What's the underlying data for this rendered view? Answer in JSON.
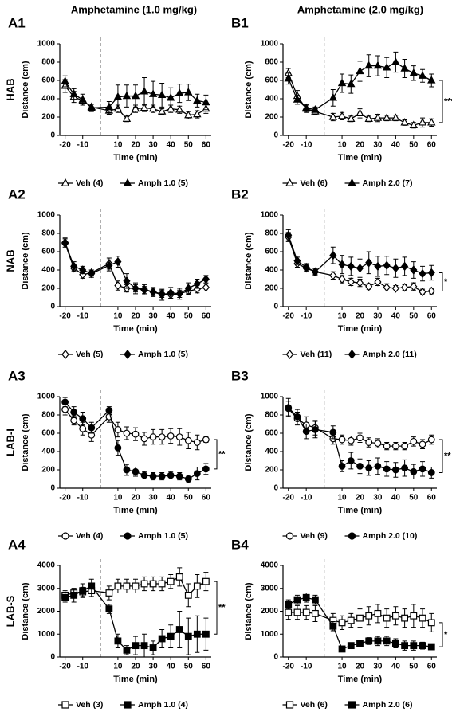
{
  "headers": [
    "Amphetamine (1.0 mg/kg)",
    "Amphetamine (2.0 mg/kg)"
  ],
  "chart_data": [
    {
      "type": "line",
      "panel": "A1",
      "row_label": "HAB",
      "xlabel": "Time (min)",
      "ylabel": "Distance (cm)",
      "x": [
        -20,
        -15,
        -10,
        -5,
        5,
        10,
        15,
        20,
        25,
        30,
        35,
        40,
        45,
        50,
        55,
        60
      ],
      "xlim": [
        -23,
        63
      ],
      "xticks": [
        -20,
        -10,
        10,
        20,
        30,
        40,
        50,
        60
      ],
      "ylim": [
        0,
        1000
      ],
      "yticks": [
        0,
        200,
        400,
        600,
        800,
        1000
      ],
      "series": [
        {
          "name": "Veh (4)",
          "marker": "triangle",
          "filled": false,
          "color": "#000000",
          "values": [
            540,
            420,
            380,
            310,
            270,
            290,
            180,
            290,
            300,
            290,
            260,
            290,
            280,
            220,
            230,
            290
          ],
          "errors": [
            70,
            60,
            50,
            30,
            40,
            40,
            30,
            40,
            40,
            40,
            30,
            40,
            40,
            40,
            40,
            50
          ]
        },
        {
          "name": "Amph 1.0 (5)",
          "marker": "triangle",
          "filled": true,
          "color": "#000000",
          "values": [
            590,
            450,
            390,
            300,
            310,
            420,
            430,
            430,
            480,
            450,
            440,
            410,
            460,
            470,
            380,
            360
          ],
          "errors": [
            60,
            60,
            60,
            40,
            60,
            130,
            120,
            120,
            150,
            140,
            130,
            110,
            100,
            90,
            70,
            80
          ]
        }
      ]
    },
    {
      "type": "line",
      "panel": "B1",
      "xlabel": "Time (min)",
      "ylabel": "Distance (cm)",
      "annotation": "***",
      "x": [
        -20,
        -15,
        -10,
        -5,
        5,
        10,
        15,
        20,
        25,
        30,
        35,
        40,
        45,
        50,
        55,
        60
      ],
      "xlim": [
        -23,
        63
      ],
      "xticks": [
        -20,
        -10,
        10,
        20,
        30,
        40,
        50,
        60
      ],
      "ylim": [
        0,
        1000
      ],
      "yticks": [
        0,
        200,
        400,
        600,
        800,
        1000
      ],
      "series": [
        {
          "name": "Veh (6)",
          "marker": "triangle",
          "filled": false,
          "color": "#000000",
          "values": [
            680,
            430,
            290,
            260,
            200,
            210,
            180,
            240,
            180,
            190,
            190,
            190,
            140,
            110,
            140,
            140
          ],
          "errors": [
            50,
            60,
            40,
            30,
            40,
            40,
            30,
            50,
            30,
            40,
            30,
            30,
            30,
            30,
            50,
            40
          ]
        },
        {
          "name": "Amph 2.0 (7)",
          "marker": "triangle",
          "filled": true,
          "color": "#000000",
          "values": [
            620,
            390,
            300,
            280,
            410,
            570,
            560,
            700,
            760,
            760,
            740,
            800,
            730,
            680,
            650,
            600
          ],
          "errors": [
            60,
            50,
            40,
            30,
            90,
            100,
            100,
            110,
            120,
            110,
            110,
            110,
            100,
            80,
            70,
            70
          ]
        }
      ]
    },
    {
      "type": "line",
      "panel": "A2",
      "row_label": "NAB",
      "xlabel": "Time (min)",
      "ylabel": "Distance (cm)",
      "x": [
        -20,
        -15,
        -10,
        -5,
        5,
        10,
        15,
        20,
        25,
        30,
        35,
        40,
        45,
        50,
        55,
        60
      ],
      "xlim": [
        -23,
        63
      ],
      "xticks": [
        -20,
        -10,
        10,
        20,
        30,
        40,
        50,
        60
      ],
      "ylim": [
        0,
        1000
      ],
      "yticks": [
        0,
        200,
        400,
        600,
        800,
        1000
      ],
      "series": [
        {
          "name": "Veh (5)",
          "marker": "diamond",
          "filled": false,
          "color": "#000000",
          "values": [
            690,
            420,
            350,
            370,
            470,
            230,
            200,
            200,
            180,
            160,
            140,
            130,
            140,
            170,
            190,
            210
          ],
          "errors": [
            50,
            40,
            40,
            30,
            60,
            50,
            40,
            40,
            40,
            40,
            40,
            40,
            40,
            40,
            40,
            40
          ]
        },
        {
          "name": "Amph 1.0 (5)",
          "marker": "diamond",
          "filled": true,
          "color": "#000000",
          "values": [
            700,
            440,
            400,
            360,
            450,
            490,
            280,
            200,
            190,
            160,
            130,
            150,
            140,
            200,
            250,
            300
          ],
          "errors": [
            50,
            50,
            40,
            40,
            60,
            60,
            80,
            60,
            50,
            50,
            60,
            60,
            60,
            60,
            50,
            40
          ]
        }
      ]
    },
    {
      "type": "line",
      "panel": "B2",
      "xlabel": "Time (min)",
      "ylabel": "Distance (cm)",
      "annotation": "*",
      "x": [
        -20,
        -15,
        -10,
        -5,
        5,
        10,
        15,
        20,
        25,
        30,
        35,
        40,
        45,
        50,
        55,
        60
      ],
      "xlim": [
        -23,
        63
      ],
      "xticks": [
        -20,
        -10,
        10,
        20,
        30,
        40,
        50,
        60
      ],
      "ylim": [
        0,
        1000
      ],
      "yticks": [
        0,
        200,
        400,
        600,
        800,
        1000
      ],
      "series": [
        {
          "name": "Veh (11)",
          "marker": "diamond",
          "filled": false,
          "color": "#000000",
          "values": [
            760,
            470,
            420,
            380,
            340,
            300,
            270,
            260,
            220,
            270,
            210,
            200,
            210,
            220,
            160,
            170
          ],
          "errors": [
            50,
            40,
            40,
            30,
            40,
            40,
            40,
            40,
            30,
            40,
            40,
            30,
            30,
            40,
            30,
            30
          ]
        },
        {
          "name": "Amph 2.0 (11)",
          "marker": "diamond",
          "filled": true,
          "color": "#000000",
          "values": [
            780,
            500,
            430,
            380,
            560,
            460,
            440,
            420,
            480,
            440,
            450,
            420,
            440,
            400,
            360,
            370
          ],
          "errors": [
            60,
            40,
            40,
            40,
            90,
            100,
            100,
            100,
            120,
            110,
            100,
            100,
            100,
            90,
            80,
            80
          ]
        }
      ]
    },
    {
      "type": "line",
      "panel": "A3",
      "row_label": "LAB-I",
      "xlabel": "Time (min)",
      "ylabel": "Distance (cm)",
      "annotation": "**",
      "x": [
        -20,
        -15,
        -10,
        -5,
        5,
        10,
        15,
        20,
        25,
        30,
        35,
        40,
        45,
        50,
        55,
        60
      ],
      "xlim": [
        -23,
        63
      ],
      "xticks": [
        -20,
        -10,
        10,
        20,
        30,
        40,
        50,
        60
      ],
      "ylim": [
        0,
        1000
      ],
      "yticks": [
        0,
        200,
        400,
        600,
        800,
        1000
      ],
      "series": [
        {
          "name": "Veh (4)",
          "marker": "circle",
          "filled": false,
          "color": "#000000",
          "values": [
            860,
            740,
            650,
            580,
            780,
            640,
            600,
            590,
            540,
            560,
            560,
            570,
            560,
            520,
            500,
            530
          ],
          "errors": [
            60,
            50,
            70,
            70,
            60,
            80,
            70,
            70,
            70,
            80,
            80,
            80,
            90,
            90,
            80,
            30
          ]
        },
        {
          "name": "Amph 1.0 (5)",
          "marker": "circle",
          "filled": true,
          "color": "#000000",
          "values": [
            940,
            830,
            760,
            660,
            850,
            440,
            200,
            180,
            140,
            130,
            130,
            140,
            130,
            100,
            160,
            210
          ],
          "errors": [
            50,
            60,
            70,
            60,
            40,
            80,
            60,
            50,
            40,
            40,
            40,
            40,
            40,
            40,
            70,
            60
          ]
        }
      ]
    },
    {
      "type": "line",
      "panel": "B3",
      "xlabel": "Time (min)",
      "ylabel": "Distance (cm)",
      "annotation": "**",
      "x": [
        -20,
        -15,
        -10,
        -5,
        5,
        10,
        15,
        20,
        25,
        30,
        35,
        40,
        45,
        50,
        55,
        60
      ],
      "xlim": [
        -23,
        63
      ],
      "xticks": [
        -20,
        -10,
        10,
        20,
        30,
        40,
        50,
        60
      ],
      "ylim": [
        0,
        1000
      ],
      "yticks": [
        0,
        200,
        400,
        600,
        800,
        1000
      ],
      "series": [
        {
          "name": "Veh (9)",
          "marker": "circle",
          "filled": false,
          "color": "#000000",
          "values": [
            870,
            760,
            690,
            660,
            540,
            530,
            520,
            550,
            500,
            490,
            460,
            460,
            460,
            510,
            480,
            530
          ],
          "errors": [
            80,
            70,
            90,
            80,
            60,
            50,
            50,
            50,
            50,
            50,
            40,
            40,
            40,
            50,
            50,
            50
          ]
        },
        {
          "name": "Amph 2.0 (10)",
          "marker": "circle",
          "filled": true,
          "color": "#000000",
          "values": [
            880,
            780,
            620,
            640,
            610,
            240,
            300,
            240,
            220,
            240,
            210,
            200,
            220,
            180,
            210,
            170
          ],
          "errors": [
            100,
            80,
            80,
            90,
            70,
            60,
            90,
            80,
            80,
            90,
            80,
            80,
            90,
            80,
            80,
            60
          ]
        }
      ]
    },
    {
      "type": "line",
      "panel": "A4",
      "row_label": "LAB-S",
      "xlabel": "Time (min)",
      "ylabel": "Distance (cm)",
      "annotation": "**",
      "x": [
        -20,
        -15,
        -10,
        -5,
        5,
        10,
        15,
        20,
        25,
        30,
        35,
        40,
        45,
        50,
        55,
        60
      ],
      "xlim": [
        -23,
        63
      ],
      "xticks": [
        -20,
        -10,
        10,
        20,
        30,
        40,
        50,
        60
      ],
      "ylim": [
        0,
        4000
      ],
      "yticks": [
        0,
        1000,
        2000,
        3000,
        4000
      ],
      "series": [
        {
          "name": "Veh (3)",
          "marker": "square",
          "filled": false,
          "color": "#000000",
          "values": [
            2700,
            2800,
            2850,
            2900,
            2800,
            3100,
            3100,
            3100,
            3200,
            3200,
            3200,
            3300,
            3500,
            2700,
            3100,
            3300
          ],
          "errors": [
            200,
            200,
            200,
            250,
            300,
            300,
            300,
            300,
            300,
            300,
            300,
            300,
            400,
            500,
            500,
            400
          ]
        },
        {
          "name": "Amph 1.0 (4)",
          "marker": "square",
          "filled": true,
          "color": "#000000",
          "values": [
            2600,
            2700,
            2900,
            3100,
            2100,
            700,
            300,
            500,
            500,
            400,
            800,
            900,
            1200,
            900,
            1000,
            1000
          ],
          "errors": [
            200,
            300,
            300,
            300,
            200,
            300,
            200,
            400,
            500,
            300,
            400,
            500,
            800,
            800,
            800,
            700
          ]
        }
      ]
    },
    {
      "type": "line",
      "panel": "B4",
      "xlabel": "Time (min)",
      "ylabel": "Distance (cm)",
      "annotation": "*",
      "x": [
        -20,
        -15,
        -10,
        -5,
        5,
        10,
        15,
        20,
        25,
        30,
        35,
        40,
        45,
        50,
        55,
        60
      ],
      "xlim": [
        -23,
        63
      ],
      "xticks": [
        -20,
        -10,
        10,
        20,
        30,
        40,
        50,
        60
      ],
      "ylim": [
        0,
        4000
      ],
      "yticks": [
        0,
        1000,
        2000,
        3000,
        4000
      ],
      "series": [
        {
          "name": "Veh (6)",
          "marker": "square",
          "filled": false,
          "color": "#000000",
          "values": [
            1950,
            1950,
            1950,
            1900,
            1600,
            1500,
            1600,
            1700,
            1800,
            1900,
            1700,
            1800,
            1700,
            1800,
            1700,
            1500
          ],
          "errors": [
            300,
            300,
            300,
            350,
            300,
            300,
            300,
            400,
            400,
            400,
            400,
            400,
            400,
            500,
            400,
            400
          ]
        },
        {
          "name": "Amph 2.0 (6)",
          "marker": "square",
          "filled": true,
          "color": "#000000",
          "values": [
            2300,
            2500,
            2600,
            2500,
            1350,
            350,
            500,
            600,
            700,
            700,
            700,
            600,
            500,
            500,
            500,
            450
          ],
          "errors": [
            200,
            200,
            200,
            200,
            200,
            100,
            100,
            150,
            150,
            200,
            200,
            200,
            200,
            200,
            150,
            100
          ]
        }
      ]
    }
  ]
}
